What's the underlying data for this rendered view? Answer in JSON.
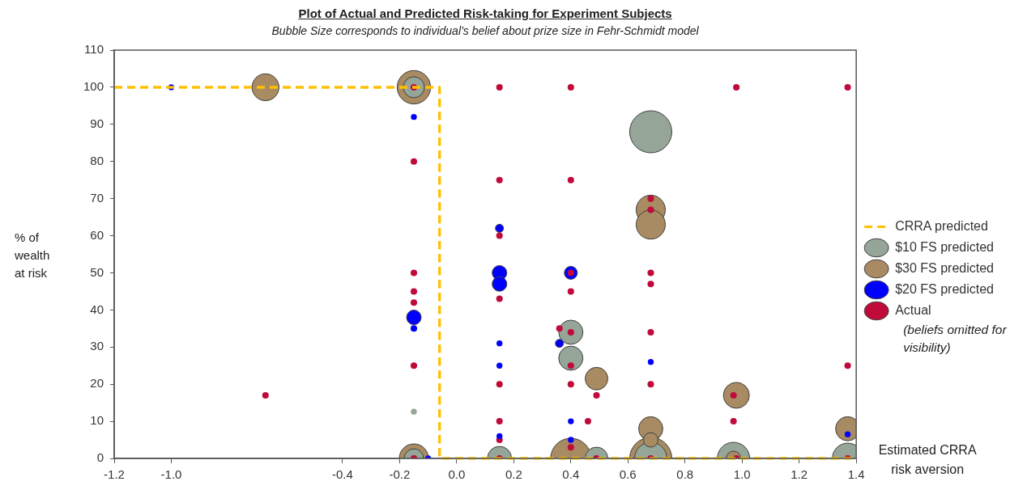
{
  "chart_data": {
    "type": "bubble",
    "title": "Plot of Actual and Predicted Risk-taking for Experiment Subjects",
    "subtitle": "Bubble Size corresponds to individual’s belief about prize size in Fehr-Schmidt model",
    "xlabel": "Estimated CRRA risk aversion",
    "ylabel": "% of wealth at risk",
    "annotations": [
      "(beliefs omitted for visibility)"
    ],
    "xlim": [
      -1.2,
      1.4
    ],
    "xticks": [
      {
        "value": -1.2,
        "label": "-1.2"
      },
      {
        "value": -1.0,
        "label": "-1.0"
      },
      {
        "value": -0.4,
        "label": "-0.4"
      },
      {
        "value": -0.2,
        "label": "-0.2"
      },
      {
        "value": 0,
        "label": "0.0"
      },
      {
        "value": 0.2,
        "label": "0.2"
      },
      {
        "value": 0.4,
        "label": "0.4"
      },
      {
        "value": 0.6,
        "label": "0.6"
      },
      {
        "value": 0.8,
        "label": "0.8"
      },
      {
        "value": 1.0,
        "label": "1.0"
      },
      {
        "value": 1.2,
        "label": "1.2"
      },
      {
        "value": 1.4,
        "label": "1.4"
      }
    ],
    "ylim": [
      0,
      110
    ],
    "yticks": [
      0,
      10,
      20,
      30,
      40,
      50,
      60,
      70,
      80,
      90,
      100,
      110
    ],
    "grid": false,
    "legend": "right",
    "marker": "circle",
    "series": [
      {
        "name": "CRRA predicted",
        "type": "line",
        "line_style": "dashed",
        "marker": "none",
        "color": "#ffc000",
        "x": [
          -1.2,
          -0.06,
          -0.06,
          1.4
        ],
        "values": [
          100,
          100,
          0,
          0
        ]
      },
      {
        "name": "$10 FS predicted",
        "color": "#95a597",
        "x": [
          -0.15,
          -0.15,
          -0.15,
          0.15,
          0.4,
          0.4,
          0.49,
          0.68,
          0.68,
          0.97,
          1.37
        ],
        "values": [
          100,
          0,
          12.6,
          0,
          34,
          27,
          0,
          88,
          0,
          0,
          0
        ],
        "sizes": [
          0.25,
          0.21,
          0.02,
          0.33,
          0.33,
          0.33,
          0.29,
          1,
          0.59,
          0.59,
          0.53
        ]
      },
      {
        "name": "$30 FS predicted",
        "color": "#a88b62",
        "x": [
          -0.67,
          -0.15,
          -0.15,
          0.4,
          0.49,
          0.68,
          0.68,
          0.68,
          0.68,
          0.68,
          0.98,
          0.97,
          1.37
        ],
        "values": [
          100,
          100,
          0,
          0,
          21.5,
          67,
          63,
          8,
          5,
          0,
          17,
          0,
          8
        ],
        "sizes": [
          0.41,
          0.63,
          0.48,
          0.92,
          0.29,
          0.48,
          0.48,
          0.33,
          0.12,
          1,
          0.38,
          0.12,
          0.33
        ]
      },
      {
        "name": "$20 FS predicted",
        "color": "#0000ff",
        "x": [
          -1.0,
          -0.15,
          -0.15,
          -0.15,
          -0.1,
          0.15,
          0.15,
          0.15,
          0.15,
          0.15,
          0.15,
          0.36,
          0.4,
          0.4,
          0.4,
          0.68,
          1.37
        ],
        "values": [
          100,
          92,
          38,
          35,
          0,
          62,
          50,
          47,
          31,
          25,
          6,
          31,
          50,
          10,
          5,
          26,
          6.5
        ],
        "sizes": [
          0.02,
          0.02,
          0.12,
          0.024,
          0.02,
          0.037,
          0.12,
          0.12,
          0.02,
          0.02,
          0.02,
          0.037,
          0.095,
          0.02,
          0.02,
          0.02,
          0.02
        ]
      },
      {
        "name": "Actual",
        "color": "#c00a3a",
        "x": [
          -0.15,
          -0.15,
          -0.15,
          -0.15,
          -0.15,
          -0.15,
          -0.67,
          -0.15,
          0.15,
          0.15,
          0.15,
          0.15,
          0.15,
          0.15,
          0.15,
          0.15,
          0.4,
          0.4,
          0.4,
          0.4,
          0.36,
          0.4,
          0.4,
          0.4,
          0.4,
          0.46,
          0.49,
          0.49,
          0.68,
          0.68,
          0.68,
          0.68,
          0.68,
          0.68,
          0.68,
          0.98,
          1.37,
          1.37,
          0.97,
          0.97,
          0.98,
          1.37
        ],
        "values": [
          100,
          80,
          50,
          45,
          42,
          25,
          17,
          0,
          100,
          75,
          60,
          43,
          20,
          10,
          5,
          0,
          100,
          75,
          50,
          45,
          35,
          34,
          25,
          20,
          3,
          10,
          17,
          0,
          70,
          67,
          50,
          47,
          34,
          20,
          0,
          100,
          100,
          25,
          17,
          10,
          0,
          0
        ],
        "sizes": [
          0.024,
          0.024,
          0.024,
          0.024,
          0.024,
          0.024,
          0.024,
          0.024,
          0.024,
          0.024,
          0.024,
          0.024,
          0.024,
          0.024,
          0.024,
          0.024,
          0.024,
          0.024,
          0.024,
          0.024,
          0.024,
          0.024,
          0.024,
          0.024,
          0.024,
          0.024,
          0.024,
          0.024,
          0.024,
          0.024,
          0.024,
          0.024,
          0.024,
          0.024,
          0.024,
          0.024,
          0.024,
          0.024,
          0.024,
          0.024,
          0.024,
          0.024
        ]
      }
    ]
  }
}
